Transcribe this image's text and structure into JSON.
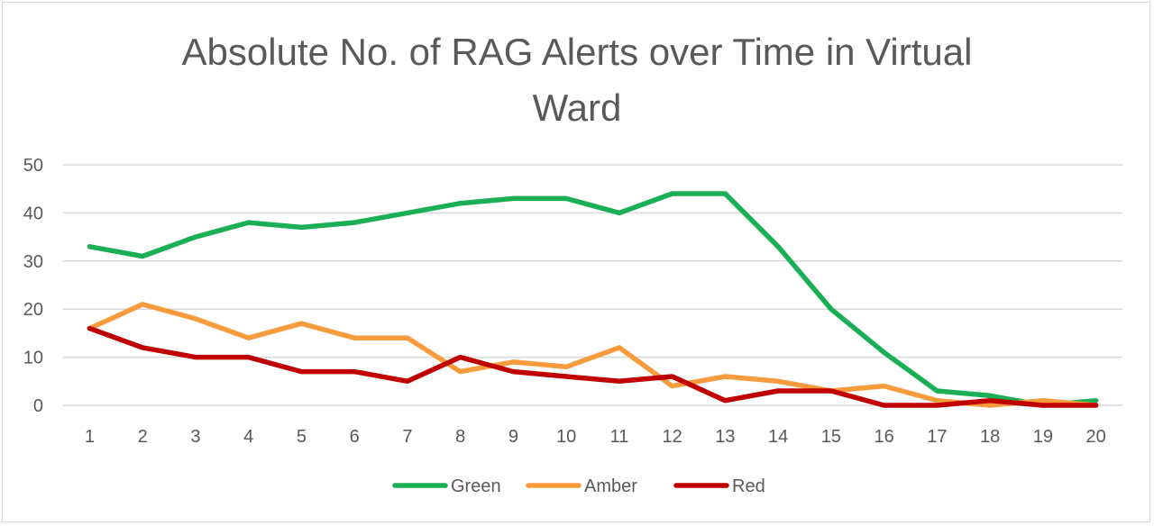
{
  "chart_data": {
    "type": "line",
    "title_lines": [
      "Absolute No. of RAG Alerts over Time in Virtual",
      "Ward"
    ],
    "xlabel": "",
    "ylabel": "",
    "x": [
      1,
      2,
      3,
      4,
      5,
      6,
      7,
      8,
      9,
      10,
      11,
      12,
      13,
      14,
      15,
      16,
      17,
      18,
      19,
      20
    ],
    "ylim": [
      0,
      50
    ],
    "yticks": [
      0,
      10,
      20,
      30,
      40,
      50
    ],
    "grid": true,
    "legend_position": "bottom",
    "series": [
      {
        "name": "Green",
        "color": "#1aaf54",
        "values": [
          33,
          31,
          35,
          38,
          37,
          38,
          40,
          42,
          43,
          43,
          40,
          44,
          44,
          33,
          20,
          11,
          3,
          2,
          0,
          1
        ]
      },
      {
        "name": "Amber",
        "color": "#f79b3c",
        "values": [
          16,
          21,
          18,
          14,
          17,
          14,
          14,
          7,
          9,
          8,
          12,
          4,
          6,
          5,
          3,
          4,
          1,
          0,
          1,
          0
        ]
      },
      {
        "name": "Red",
        "color": "#c00000",
        "values": [
          16,
          12,
          10,
          10,
          7,
          7,
          5,
          10,
          7,
          6,
          5,
          6,
          1,
          3,
          3,
          0,
          0,
          1,
          0,
          0
        ]
      }
    ]
  }
}
